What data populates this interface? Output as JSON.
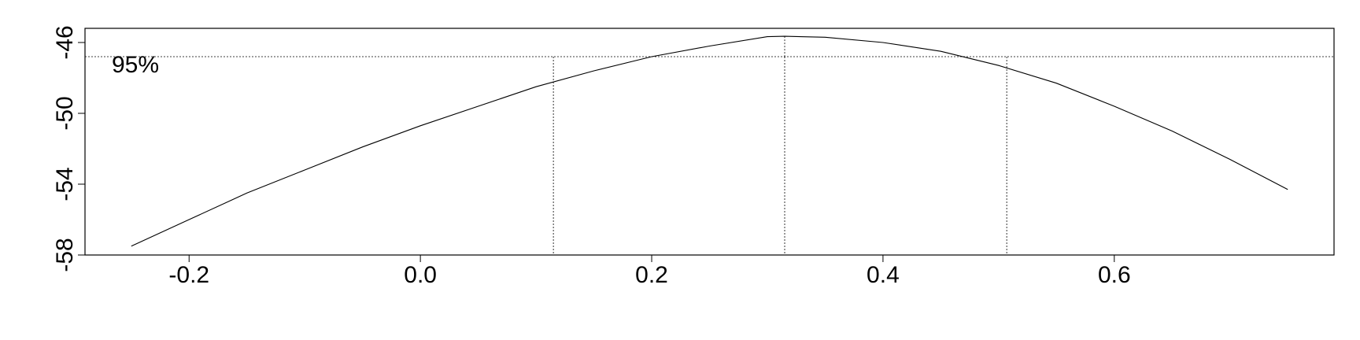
{
  "chart_data": {
    "type": "line",
    "title": "",
    "xlabel": "",
    "ylabel": "",
    "xlim": [
      -0.29,
      0.79
    ],
    "ylim": [
      -58,
      -45.2
    ],
    "x_ticks": [
      -0.2,
      0.0,
      0.2,
      0.4,
      0.6
    ],
    "x_tick_labels": [
      "-0.2",
      "0.0",
      "0.2",
      "0.4",
      "0.6"
    ],
    "y_ticks": [
      -58,
      -54,
      -50,
      -46
    ],
    "y_tick_labels": [
      "-58",
      "-54",
      "-50",
      "-46"
    ],
    "series": [
      {
        "x": [
          -0.25,
          -0.2,
          -0.15,
          -0.1,
          -0.05,
          0.0,
          0.05,
          0.1,
          0.15,
          0.2,
          0.25,
          0.3,
          0.315,
          0.35,
          0.4,
          0.45,
          0.5,
          0.55,
          0.6,
          0.65,
          0.7,
          0.75
        ],
        "y": [
          -57.5,
          -56.0,
          -54.5,
          -53.2,
          -51.9,
          -50.7,
          -49.6,
          -48.5,
          -47.6,
          -46.8,
          -46.2,
          -45.67,
          -45.65,
          -45.7,
          -46.0,
          -46.5,
          -47.3,
          -48.3,
          -49.6,
          -51.0,
          -52.6,
          -54.3
        ]
      }
    ],
    "reference_lines": {
      "horizontal": -46.8,
      "vertical": [
        0.115,
        0.315,
        0.507
      ]
    },
    "annotation": "95%",
    "grid": false,
    "legend": "none"
  }
}
